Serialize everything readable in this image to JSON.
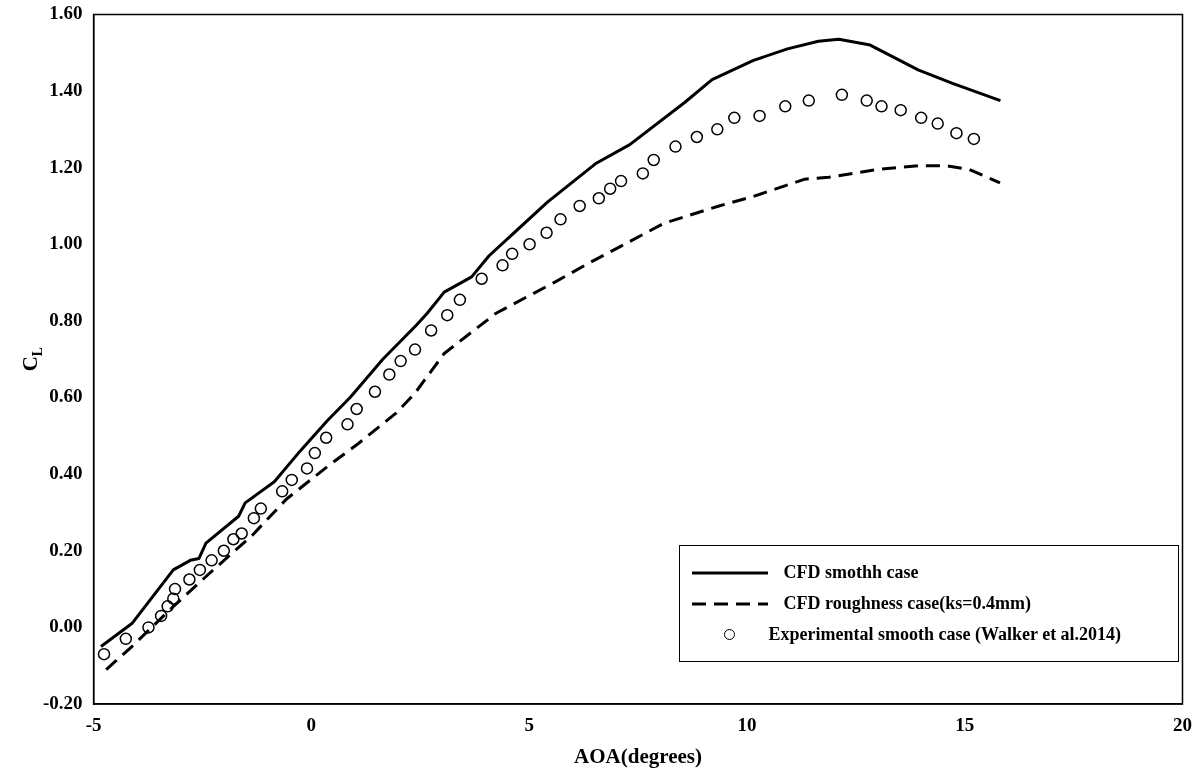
{
  "chart_data": {
    "type": "line",
    "xlabel": "AOA(degrees)",
    "ylabel": "C$_{L}$",
    "xlim": [
      -5,
      20
    ],
    "xticks": [
      -5,
      0,
      5,
      10,
      15,
      20
    ],
    "ylim": [
      -0.2,
      1.6
    ],
    "yticks": [
      {
        "value": -0.2,
        "label": "-0.20"
      },
      {
        "value": 0,
        "label": "0.00"
      },
      {
        "value": 0.2,
        "label": "0.20"
      },
      {
        "value": 0.4,
        "label": "0.40"
      },
      {
        "value": 0.6,
        "label": "0.60"
      },
      {
        "value": 0.8,
        "label": "0.80"
      },
      {
        "value": 1.0,
        "label": "1.00"
      },
      {
        "value": 1.2,
        "label": "1.20"
      },
      {
        "value": 1.4,
        "label": "1.40"
      },
      {
        "value": 1.6,
        "label": "1.60"
      }
    ],
    "grid": false,
    "legend": "bottom right",
    "series": [
      {
        "name": "CFD smothh case",
        "line_style": "solid",
        "marker": "none",
        "color": "#000000",
        "x": [
          -4.83,
          -4.12,
          -3.17,
          -2.78,
          -2.58,
          -2.42,
          -1.67,
          -1.52,
          -0.85,
          -0.26,
          0.37,
          0.89,
          1.64,
          2.42,
          2.66,
          3.05,
          3.68,
          4.08,
          5.42,
          6.52,
          7.31,
          8.57,
          9.2,
          10.15,
          10.93,
          11.64,
          12.11,
          12.83,
          13.93,
          14.72,
          15.82
        ],
        "values": [
          -0.05,
          0.01,
          0.15,
          0.175,
          0.18,
          0.22,
          0.29,
          0.325,
          0.38,
          0.46,
          0.54,
          0.6,
          0.7,
          0.79,
          0.82,
          0.875,
          0.915,
          0.97,
          1.11,
          1.21,
          1.26,
          1.37,
          1.43,
          1.48,
          1.51,
          1.53,
          1.535,
          1.52,
          1.455,
          1.42,
          1.375
        ]
      },
      {
        "name": "CFD roughness case(ks=0.4mm)",
        "line_style": "dashed",
        "marker": "none",
        "color": "#000000",
        "x": [
          -4.71,
          -4.12,
          -3.21,
          -2.35,
          -1.36,
          -0.57,
          0.37,
          1.08,
          1.95,
          2.37,
          3.05,
          4.24,
          5.57,
          6.36,
          8.1,
          9.36,
          10.15,
          11.33,
          11.88,
          12.98,
          13.93,
          14.56,
          15.11,
          15.81
        ],
        "values": [
          -0.11,
          -0.05,
          0.05,
          0.14,
          0.24,
          0.335,
          0.42,
          0.48,
          0.56,
          0.61,
          0.715,
          0.82,
          0.9,
          0.95,
          1.055,
          1.1,
          1.125,
          1.17,
          1.175,
          1.195,
          1.205,
          1.205,
          1.195,
          1.16
        ]
      },
      {
        "name": "Experimental smooth case (Walker et al.2014)",
        "type": "scatter",
        "marker": "circle",
        "color": "#000000",
        "x": [
          -4.76,
          -4.26,
          -3.74,
          -3.45,
          -3.3,
          -3.17,
          -3.13,
          -2.8,
          -2.56,
          -2.29,
          -2.01,
          -1.79,
          -1.6,
          -1.32,
          -1.16,
          -0.67,
          -0.45,
          -0.1,
          0.08,
          0.34,
          0.83,
          1.04,
          1.46,
          1.79,
          2.05,
          2.38,
          2.75,
          3.12,
          3.41,
          3.91,
          4.39,
          4.61,
          5.01,
          5.4,
          5.72,
          6.16,
          6.6,
          6.86,
          7.11,
          7.61,
          7.86,
          8.36,
          8.85,
          9.32,
          9.71,
          10.29,
          10.88,
          11.42,
          12.18,
          12.75,
          13.09,
          13.53,
          14.0,
          14.38,
          14.81,
          15.21
        ],
        "values": [
          -0.07,
          -0.03,
          0.0,
          0.03,
          0.055,
          0.075,
          0.1,
          0.125,
          0.15,
          0.175,
          0.2,
          0.23,
          0.245,
          0.285,
          0.31,
          0.355,
          0.385,
          0.415,
          0.455,
          0.495,
          0.53,
          0.57,
          0.615,
          0.66,
          0.695,
          0.725,
          0.775,
          0.815,
          0.855,
          0.91,
          0.945,
          0.975,
          1.0,
          1.03,
          1.065,
          1.1,
          1.12,
          1.145,
          1.165,
          1.185,
          1.22,
          1.255,
          1.28,
          1.3,
          1.33,
          1.335,
          1.36,
          1.375,
          1.39,
          1.375,
          1.36,
          1.35,
          1.33,
          1.315,
          1.29,
          1.275
        ]
      }
    ]
  }
}
